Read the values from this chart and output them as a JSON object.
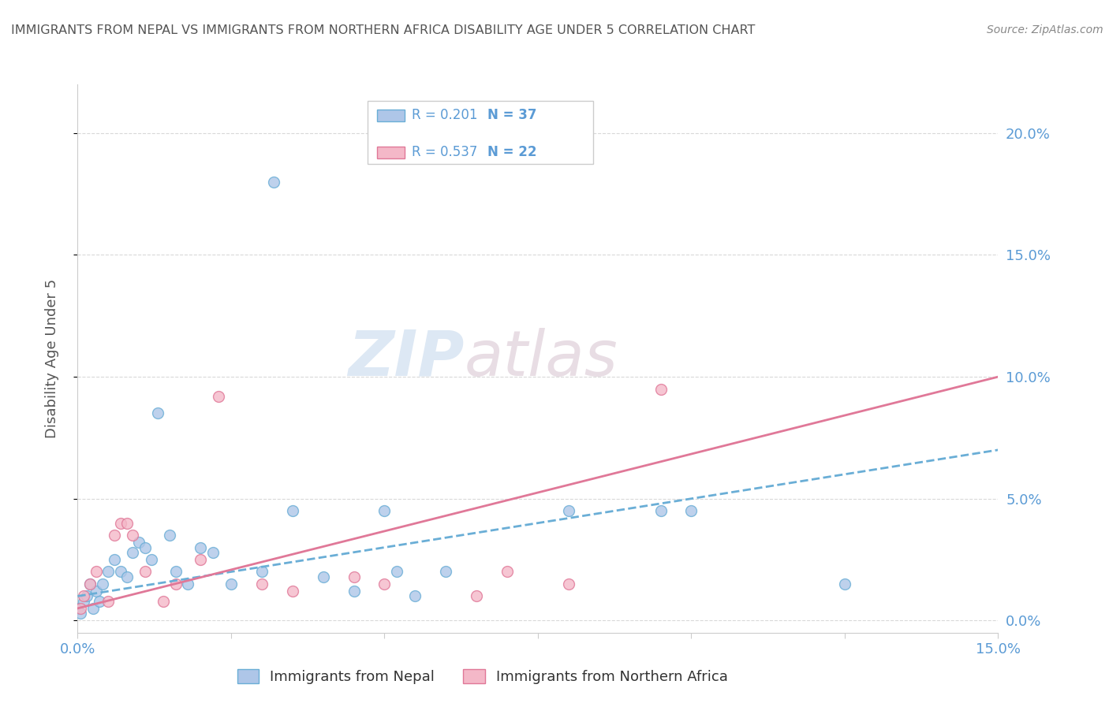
{
  "title": "IMMIGRANTS FROM NEPAL VS IMMIGRANTS FROM NORTHERN AFRICA DISABILITY AGE UNDER 5 CORRELATION CHART",
  "source": "Source: ZipAtlas.com",
  "ylabel": "Disability Age Under 5",
  "ytick_vals": [
    0.0,
    5.0,
    10.0,
    15.0,
    20.0
  ],
  "xlim": [
    0.0,
    15.0
  ],
  "ylim": [
    -0.5,
    22.0
  ],
  "nepal_color": "#aec6e8",
  "nepal_color_edge": "#6aaed6",
  "n_africa_color": "#f4b8c8",
  "n_africa_color_edge": "#e07898",
  "nepal_R": "0.201",
  "nepal_N": "37",
  "n_africa_R": "0.537",
  "n_africa_N": "22",
  "nepal_scatter_x": [
    0.0,
    0.05,
    0.1,
    0.15,
    0.2,
    0.25,
    0.3,
    0.35,
    0.4,
    0.5,
    0.6,
    0.7,
    0.8,
    0.9,
    1.0,
    1.1,
    1.2,
    1.5,
    1.6,
    1.8,
    2.0,
    2.2,
    2.5,
    3.0,
    3.2,
    3.5,
    4.0,
    4.5,
    5.0,
    5.2,
    5.5,
    6.0,
    8.0,
    9.5,
    10.0,
    12.5,
    1.3
  ],
  "nepal_scatter_y": [
    0.5,
    0.3,
    0.8,
    1.0,
    1.5,
    0.5,
    1.2,
    0.8,
    1.5,
    2.0,
    2.5,
    2.0,
    1.8,
    2.8,
    3.2,
    3.0,
    2.5,
    3.5,
    2.0,
    1.5,
    3.0,
    2.8,
    1.5,
    2.0,
    18.0,
    4.5,
    1.8,
    1.2,
    4.5,
    2.0,
    1.0,
    2.0,
    4.5,
    4.5,
    4.5,
    1.5,
    8.5
  ],
  "n_africa_scatter_x": [
    0.05,
    0.1,
    0.2,
    0.3,
    0.5,
    0.7,
    0.9,
    1.1,
    1.4,
    1.6,
    2.0,
    2.3,
    3.0,
    3.5,
    4.5,
    5.0,
    6.5,
    7.0,
    8.0,
    9.5,
    0.6,
    0.8
  ],
  "n_africa_scatter_y": [
    0.5,
    1.0,
    1.5,
    2.0,
    0.8,
    4.0,
    3.5,
    2.0,
    0.8,
    1.5,
    2.5,
    9.2,
    1.5,
    1.2,
    1.8,
    1.5,
    1.0,
    2.0,
    1.5,
    9.5,
    3.5,
    4.0
  ],
  "nepal_line_x": [
    0.0,
    15.0
  ],
  "nepal_line_y": [
    1.0,
    7.0
  ],
  "n_africa_line_x": [
    0.0,
    15.0
  ],
  "n_africa_line_y": [
    0.5,
    10.0
  ],
  "watermark_zip": "ZIP",
  "watermark_atlas": "atlas",
  "background_color": "#ffffff",
  "text_color": "#5b9bd5",
  "title_color": "#555555",
  "legend_label_color": "#333333",
  "grid_color": "#d0d0d0",
  "spine_color": "#cccccc"
}
